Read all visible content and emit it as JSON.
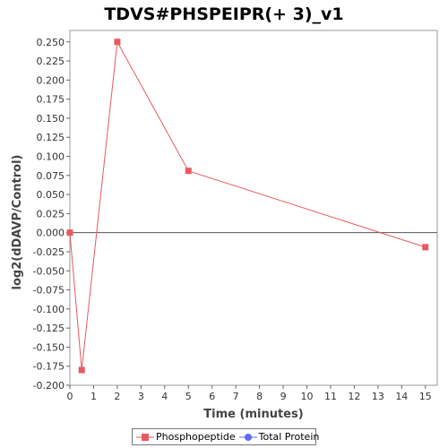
{
  "chart_data": {
    "type": "line",
    "title": "TDVS#PHSPEIPR(+ 3)_v1",
    "xlabel": "Time (minutes)",
    "ylabel": "log2(dDAVP/Control)",
    "xlim": [
      0,
      15.5
    ],
    "ylim": [
      -0.2,
      0.265
    ],
    "x_ticks": [
      0,
      1,
      2,
      3,
      4,
      5,
      6,
      7,
      8,
      9,
      10,
      11,
      12,
      13,
      14,
      15
    ],
    "y_ticks": [
      -0.2,
      -0.175,
      -0.15,
      -0.125,
      -0.1,
      -0.075,
      -0.05,
      -0.025,
      0.0,
      0.025,
      0.05,
      0.075,
      0.1,
      0.125,
      0.15,
      0.175,
      0.2,
      0.225,
      0.25
    ],
    "y_tick_labels": [
      "-0.200",
      "-0.175",
      "-0.150",
      "-0.125",
      "-0.100",
      "-0.075",
      "-0.050",
      "-0.025",
      "0.000",
      "0.025",
      "0.050",
      "0.075",
      "0.100",
      "0.125",
      "0.150",
      "0.175",
      "0.200",
      "0.225",
      "0.250"
    ],
    "zero_line": true,
    "grid": false,
    "legend_position": "bottom",
    "series": [
      {
        "name": "Phosphopeptide",
        "color": "#e8595f",
        "marker": "square",
        "x": [
          0,
          0.5,
          2,
          5,
          15
        ],
        "y": [
          0.0,
          -0.18,
          0.25,
          0.081,
          -0.019
        ]
      },
      {
        "name": "Total Protein",
        "color": "#5b6cf0",
        "marker": "circle",
        "x": [],
        "y": []
      }
    ]
  }
}
